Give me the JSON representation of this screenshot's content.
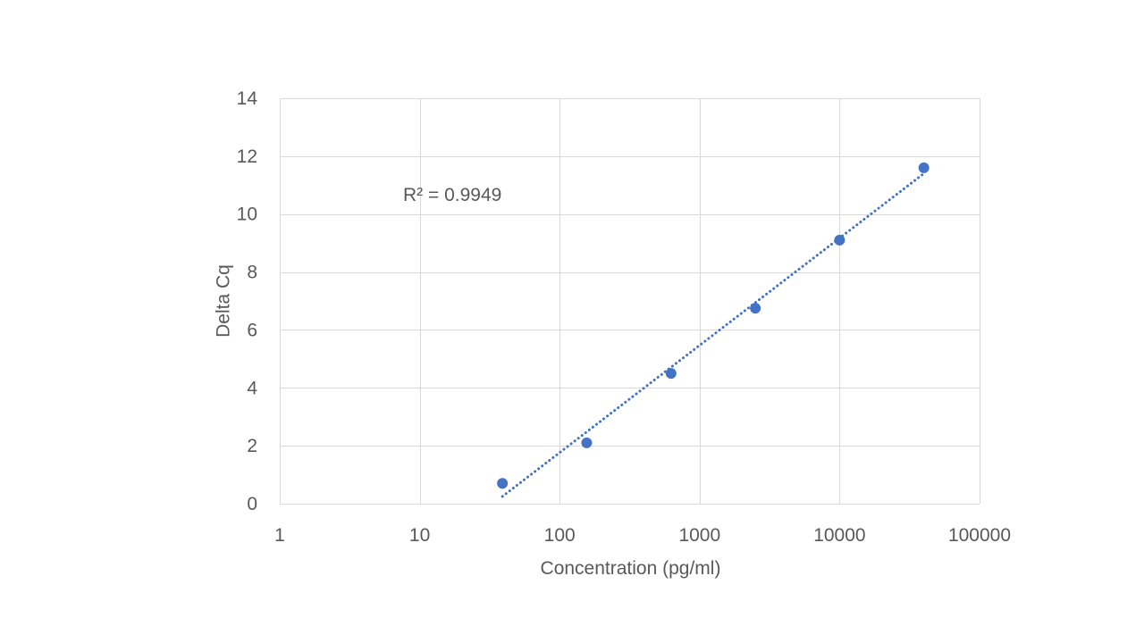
{
  "chart_data": {
    "type": "scatter",
    "title": "",
    "xlabel": "Concentration (pg/ml)",
    "ylabel": "Delta Cq",
    "x_scale": "log",
    "xlim": [
      1,
      100000
    ],
    "ylim": [
      0,
      14
    ],
    "x_ticks": [
      1,
      10,
      100,
      1000,
      10000,
      100000
    ],
    "x_tick_labels": [
      "1",
      "10",
      "100",
      "1000",
      "10000",
      "100000"
    ],
    "y_ticks": [
      0,
      2,
      4,
      6,
      8,
      10,
      12,
      14
    ],
    "y_tick_labels": [
      "0",
      "2",
      "4",
      "6",
      "8",
      "10",
      "12",
      "14"
    ],
    "grid": true,
    "legend": false,
    "series": [
      {
        "color": "#4472C4",
        "points": [
          {
            "x": 39,
            "y": 0.7
          },
          {
            "x": 156,
            "y": 2.1
          },
          {
            "x": 625,
            "y": 4.5
          },
          {
            "x": 2500,
            "y": 6.75
          },
          {
            "x": 10000,
            "y": 9.1
          },
          {
            "x": 40000,
            "y": 11.6
          }
        ]
      }
    ],
    "trendline": {
      "type": "logarithmic",
      "style": "dotted",
      "color": "#4472C4",
      "x_range": [
        39,
        40000
      ],
      "y_range": [
        0.25,
        11.4
      ]
    },
    "annotations": [
      {
        "text": "R² = 0.9949"
      }
    ],
    "colors": {
      "gridline": "#d9d9d9",
      "text": "#595959",
      "marker": "#4472C4"
    }
  }
}
